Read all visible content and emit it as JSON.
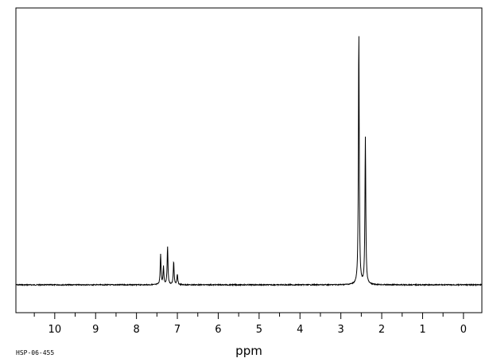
{
  "chart_data": {
    "type": "line",
    "title": "",
    "xlabel": "ppm",
    "ylabel": "",
    "xlim": [
      10.95,
      -0.45
    ],
    "x_reversed": true,
    "ylim": [
      0,
      1
    ],
    "grid": false,
    "legend": "none",
    "x_ticks": [
      10,
      9,
      8,
      7,
      6,
      5,
      4,
      3,
      2,
      1,
      0
    ],
    "x_tick_labels": [
      "10",
      "9",
      "8",
      "7",
      "6",
      "5",
      "4",
      "3",
      "2",
      "1",
      "0"
    ],
    "spectrum_code": "HSP-06-455",
    "peaks": [
      {
        "ppm": 7.41,
        "height": 0.12
      },
      {
        "ppm": 7.34,
        "height": 0.07
      },
      {
        "ppm": 7.24,
        "height": 0.15
      },
      {
        "ppm": 7.09,
        "height": 0.09
      },
      {
        "ppm": 7.0,
        "height": 0.04
      },
      {
        "ppm": 2.56,
        "height": 1.0
      },
      {
        "ppm": 2.4,
        "height": 0.58
      }
    ]
  }
}
